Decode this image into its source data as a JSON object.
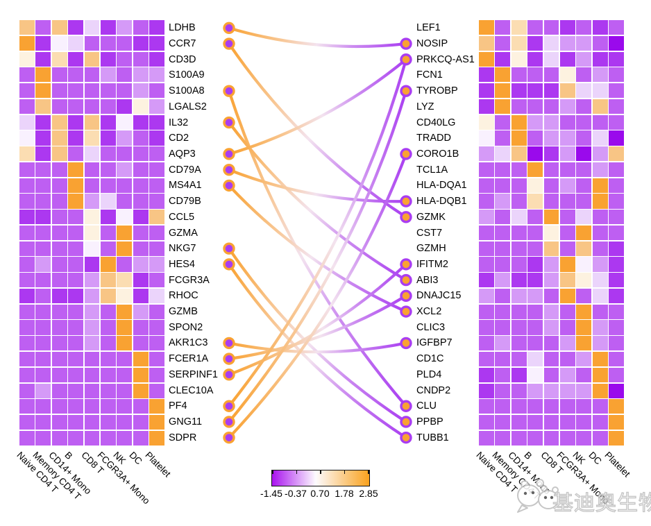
{
  "watermark": {
    "text": "基迪奥生物",
    "icon": "panda-logo"
  },
  "chart_data": {
    "type": "heatmap",
    "subtype": "paired-heatmaps-with-gene-links",
    "title": "",
    "categories": [
      "Naive CD4 T",
      "Memory CD4 T",
      "CD14+ Mono",
      "B",
      "CD8 T",
      "FCGR3A+ Mono",
      "NK",
      "DC",
      "Platelet"
    ],
    "left_panel": {
      "genes": [
        "LDHB",
        "CCR7",
        "CD3D",
        "S100A9",
        "S100A8",
        "LGALS2",
        "IL32",
        "CD2",
        "AQP3",
        "CD79A",
        "MS4A1",
        "CD79B",
        "CCL5",
        "GZMA",
        "NKG7",
        "HES4",
        "FCGR3A",
        "RHOC",
        "GZMB",
        "SPON2",
        "AKR1C3",
        "FCER1A",
        "SERPINF1",
        "CLEC10A",
        "PF4",
        "GNG11",
        "SDPR"
      ],
      "cells": [
        "HAHBEBDAB",
        "GBFEAAABB",
        "JBIBHBAAB",
        "AGAAADADD",
        "AGAAAAADA",
        "AHAAAABJD",
        "EBHBHBFBB",
        "FBHBIBDAB",
        "IBHAEAAAA",
        "AAAGAADAA",
        "AAAGAAAAA",
        "AAAGDEAAA",
        "BBAAJBFBH",
        "AAAAJAGAA",
        "AAAAFAGAA",
        "ADAABGADD",
        "AAAADHIBA",
        "BABBDHJBE",
        "AAAADAGDA",
        "AAAADAGAA",
        "AAAADAGAA",
        "AAAAAAAGA",
        "AAAAAAAGA",
        "ADAAAAAGA",
        "AAAAAAAAG",
        "AAAAAAAAG",
        "AAAAAAAAG"
      ]
    },
    "right_panel": {
      "genes": [
        "LEF1",
        "NOSIP",
        "PRKCQ-AS1",
        "FCN1",
        "TYROBP",
        "LYZ",
        "CD40LG",
        "TRADD",
        "CORO1B",
        "TCL1A",
        "HLA-DQA1",
        "HLA-DQB1",
        "GZMK",
        "CST7",
        "GZMH",
        "IFITM2",
        "ABI3",
        "DNAJC15",
        "XCL2",
        "CLIC3",
        "IGFBP7",
        "CD1C",
        "PLD4",
        "CNDP2",
        "CLU",
        "PPBP",
        "TUBB1"
      ],
      "cells": [
        "GAIAABABA",
        "HAIBEDDAC",
        "GBJBEBDBB",
        "BGAAAJADA",
        "BGBBBHEEA",
        "BGAAADAHA",
        "JAGDDAAAA",
        "FAGADDAEC",
        "DEHCBDCDH",
        "AAAGAAADA",
        "AAAJADAGA",
        "ADAIAAAGA",
        "DAEAGAEAA",
        "AAAAJAGAA",
        "AAAAHAHAB",
        "AAABDGFDB",
        "BDBBDHJEB",
        "DADDAGAEB",
        "AAAADAGAA",
        "AAAADAGDA",
        "ADAAADGDA",
        "AAAEAADGA",
        "BABFADAGA",
        "BAADDDDGC",
        "AAAAAAAAG",
        "AAAAAAAAG",
        "AAAAAAAAG"
      ]
    },
    "left_marked_genes": [
      "LDHB",
      "CCR7",
      "S100A8",
      "IL32",
      "AQP3",
      "CD79A",
      "MS4A1",
      "NKG7",
      "HES4",
      "AKR1C3",
      "FCER1A",
      "SERPINF1",
      "PF4",
      "GNG11",
      "SDPR"
    ],
    "links": [
      {
        "from": "LDHB",
        "to": "NOSIP"
      },
      {
        "from": "CCR7",
        "to": "GZMK"
      },
      {
        "from": "S100A8",
        "to": "CLU"
      },
      {
        "from": "IL32",
        "to": "ABI3"
      },
      {
        "from": "AQP3",
        "to": "PRKCQ-AS1"
      },
      {
        "from": "CD79A",
        "to": "HLA-DQB1"
      },
      {
        "from": "MS4A1",
        "to": "XCL2"
      },
      {
        "from": "NKG7",
        "to": "PPBP"
      },
      {
        "from": "HES4",
        "to": "TUBB1"
      },
      {
        "from": "AKR1C3",
        "to": "IGFBP7"
      },
      {
        "from": "FCER1A",
        "to": "DNAJC15"
      },
      {
        "from": "SERPINF1",
        "to": "IFITM2"
      },
      {
        "from": "PF4",
        "to": "PRKCQ-AS1"
      },
      {
        "from": "GNG11",
        "to": "TYROBP"
      },
      {
        "from": "SDPR",
        "to": "CORO1B"
      }
    ],
    "palette": {
      "A": "#BE5FF2",
      "B": "#AC38F0",
      "C": "#9A0AEC",
      "D": "#D59AF7",
      "E": "#EBD4FB",
      "F": "#F9F1FE",
      "G": "#F9A232",
      "H": "#F8C585",
      "I": "#FBDDB2",
      "J": "#FDF2E0"
    },
    "link_colors": {
      "left_end": "#F9A232",
      "mid_left": "#F8C795",
      "mid": "#F3E3EF",
      "mid_right": "#CC8CF0",
      "right_end": "#A93DF1"
    },
    "dot_style": {
      "left": {
        "fill": "#A93DF1",
        "ring": "#F9A232"
      },
      "right": {
        "fill": "#F9A232",
        "ring": "#A93DF1"
      }
    },
    "colorbar": {
      "tick_labels": [
        "-1.45",
        "-0.37",
        "0.70",
        "1.78",
        "2.85"
      ],
      "min_color": "#A813EE",
      "mid_color": "#FDFBFE",
      "max_color": "#F9A21E"
    },
    "legend_position": "bottom-center",
    "grid": false
  }
}
